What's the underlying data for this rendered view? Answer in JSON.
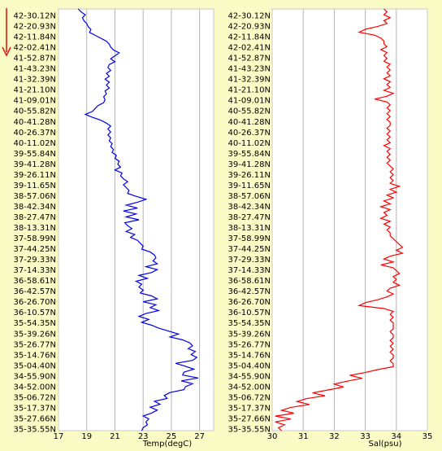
{
  "colors": {
    "background": "#fbfbc6",
    "plot_background": "#ffffff",
    "grid": "#b4b4b4",
    "temperature_line": "#0000e6",
    "salinity_line": "#ff0000",
    "direction_arrow": "#e11b1b"
  },
  "direction_indicator": "arrow-down",
  "chart_data": [
    {
      "type": "line",
      "orientation": "vertical-profile",
      "xlabel": "Temp(degC)",
      "xlim": [
        17,
        28
      ],
      "x_ticks": [
        "17",
        "19",
        "21",
        "23",
        "25",
        "27"
      ],
      "grid": true,
      "y_tick_labels": [
        "42-30.12N",
        "42-20.93N",
        "42-11.84N",
        "42-02.41N",
        "41-52.87N",
        "41-43.23N",
        "41-32.39N",
        "41-21.10N",
        "41-09.01N",
        "40-55.82N",
        "40-41.28N",
        "40-26.37N",
        "40-11.02N",
        "39-55.84N",
        "39-41.28N",
        "39-26.11N",
        "39-11.65N",
        "38-57.06N",
        "38-42.34N",
        "38-27.47N",
        "38-13.31N",
        "37-58.99N",
        "37-44.25N",
        "37-29.33N",
        "37-14.33N",
        "36-58.61N",
        "36-42.57N",
        "36-26.70N",
        "36-10.57N",
        "35-54.35N",
        "35-39.26N",
        "35-26.77N",
        "35-14.76N",
        "35-04.40N",
        "34-55.90N",
        "34-52.00N",
        "35-06.72N",
        "35-17.37N",
        "35-27.66N",
        "35-35.55N"
      ],
      "series": [
        {
          "color": "#0000e6",
          "x": [
            18.4,
            18.6,
            18.9,
            18.7,
            18.8,
            19.0,
            19.1,
            19.3,
            19.2,
            19.6,
            20.0,
            20.4,
            20.6,
            20.7,
            20.9,
            21.3,
            21.0,
            20.7,
            21.0,
            20.6,
            20.5,
            20.7,
            20.4,
            20.6,
            20.3,
            20.6,
            20.4,
            20.6,
            20.3,
            20.4,
            20.2,
            20.3,
            20.2,
            19.8,
            19.6,
            19.4,
            18.9,
            19.4,
            20.0,
            20.4,
            20.7,
            20.5,
            20.7,
            20.5,
            20.7,
            20.6,
            20.8,
            20.7,
            20.9,
            20.8,
            21.1,
            21.0,
            21.3,
            21.2,
            21.4,
            21.0,
            21.5,
            21.4,
            21.6,
            21.9,
            21.6,
            21.8,
            22.0,
            21.9,
            22.5,
            23.2,
            22.6,
            21.8,
            22.6,
            21.6,
            22.5,
            21.8,
            22.7,
            21.7,
            21.9,
            22.2,
            21.8,
            22.4,
            22.1,
            22.6,
            22.8,
            23.0,
            22.9,
            23.5,
            23.8,
            23.9,
            23.7,
            24.0,
            23.2,
            24.0,
            23.6,
            22.7,
            23.3,
            22.5,
            22.9,
            22.7,
            23.0,
            22.8,
            23.6,
            24.0,
            23.0,
            23.9,
            23.5,
            24.1,
            23.2,
            22.7,
            23.4,
            22.9,
            23.6,
            24.1,
            24.8,
            25.5,
            24.9,
            25.8,
            26.3,
            26.5,
            26.2,
            26.7,
            26.4,
            26.8,
            26.5,
            25.3,
            26.0,
            26.6,
            25.9,
            25.8,
            26.9,
            25.7,
            26.5,
            26.0,
            25.9,
            24.9,
            24.5,
            24.7,
            23.8,
            24.2,
            23.5,
            24.0,
            23.6,
            23.0,
            23.4,
            23.2,
            23.3,
            23.0,
            22.9
          ]
        }
      ]
    },
    {
      "type": "line",
      "orientation": "vertical-profile",
      "xlabel": "Sal(psu)",
      "xlim": [
        30,
        35
      ],
      "x_ticks": [
        "30",
        "31",
        "32",
        "33",
        "34",
        "35"
      ],
      "grid": true,
      "y_tick_labels": [
        "42-30.12N",
        "42-20.93N",
        "42-11.84N",
        "42-02.41N",
        "41-52.87N",
        "41-43.23N",
        "41-32.39N",
        "41-21.10N",
        "41-09.01N",
        "40-55.82N",
        "40-41.28N",
        "40-26.37N",
        "40-11.02N",
        "39-55.84N",
        "39-41.28N",
        "39-26.11N",
        "39-11.65N",
        "38-57.06N",
        "38-42.34N",
        "38-27.47N",
        "38-13.31N",
        "37-58.99N",
        "37-44.25N",
        "37-29.33N",
        "37-14.33N",
        "36-58.61N",
        "36-42.57N",
        "36-26.70N",
        "36-10.57N",
        "35-54.35N",
        "35-39.26N",
        "35-26.77N",
        "35-14.76N",
        "35-04.40N",
        "34-55.90N",
        "34-52.00N",
        "35-06.72N",
        "35-17.37N",
        "35-27.66N",
        "35-35.55N"
      ],
      "series": [
        {
          "color": "#ff0000",
          "x": [
            33.6,
            33.7,
            33.6,
            33.8,
            33.6,
            33.7,
            33.4,
            33.0,
            32.8,
            33.3,
            33.5,
            33.6,
            33.6,
            33.7,
            33.5,
            33.7,
            33.6,
            33.7,
            33.6,
            33.8,
            33.7,
            33.8,
            33.7,
            33.8,
            33.6,
            33.8,
            33.7,
            33.8,
            33.6,
            33.9,
            33.7,
            33.3,
            33.7,
            33.8,
            33.7,
            33.8,
            33.7,
            33.8,
            33.7,
            33.8,
            33.8,
            33.7,
            33.8,
            33.7,
            33.8,
            33.7,
            33.8,
            33.6,
            33.8,
            33.7,
            33.8,
            33.7,
            33.8,
            33.7,
            33.8,
            33.9,
            33.8,
            33.9,
            33.8,
            33.9,
            33.8,
            34.1,
            33.8,
            34.0,
            33.7,
            33.9,
            33.6,
            33.8,
            33.5,
            33.8,
            33.6,
            33.7,
            33.5,
            33.8,
            33.6,
            33.8,
            33.7,
            33.8,
            33.8,
            33.9,
            34.0,
            34.1,
            34.2,
            34.0,
            34.2,
            33.8,
            33.6,
            33.9,
            33.5,
            33.9,
            34.0,
            34.1,
            33.9,
            34.0,
            33.9,
            34.1,
            33.8,
            33.7,
            33.9,
            33.7,
            33.4,
            33.0,
            32.8,
            33.6,
            33.9,
            33.8,
            33.9,
            33.8,
            33.9,
            33.9,
            33.9,
            33.8,
            33.9,
            33.9,
            33.8,
            33.9,
            33.8,
            33.9,
            33.8,
            33.9,
            33.9,
            33.8,
            33.9,
            33.9,
            33.4,
            33.0,
            32.5,
            32.9,
            32.4,
            32.0,
            32.3,
            31.8,
            31.3,
            31.7,
            31.1,
            30.8,
            31.2,
            30.6,
            30.3,
            30.7,
            30.1,
            30.6,
            30.1,
            30.4,
            30.2,
            30.3
          ]
        }
      ]
    }
  ]
}
